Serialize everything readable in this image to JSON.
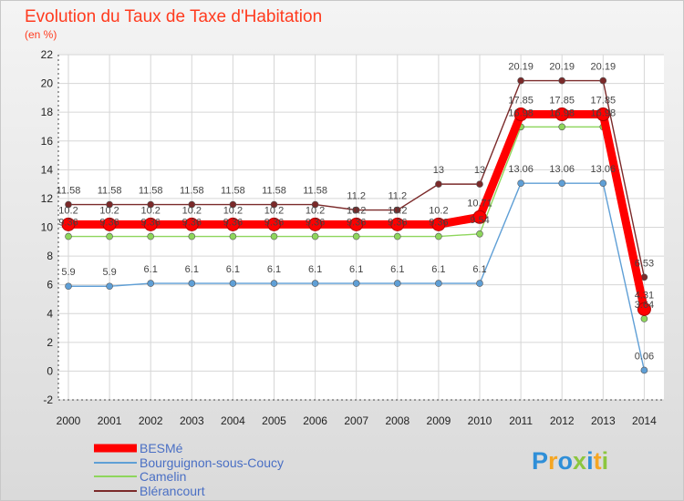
{
  "chart_data": {
    "type": "line",
    "title": "Evolution du Taux de Taxe d'Habitation",
    "subtitle": "(en %)",
    "categories": [
      "2000",
      "2001",
      "2002",
      "2003",
      "2004",
      "2005",
      "2006",
      "2007",
      "2008",
      "2009",
      "2010",
      "2011",
      "2012",
      "2013",
      "2014"
    ],
    "ylim": [
      -2,
      22
    ],
    "yticks": [
      -2,
      0,
      2,
      4,
      6,
      8,
      10,
      12,
      14,
      16,
      18,
      20,
      22
    ],
    "grid": true,
    "legend_position": "bottom-left",
    "series": [
      {
        "name": "BESMé",
        "color": "#ff0000",
        "values": [
          10.2,
          10.2,
          10.2,
          10.2,
          10.2,
          10.2,
          10.2,
          10.2,
          10.2,
          10.2,
          10.71,
          17.85,
          17.85,
          17.85,
          4.31
        ],
        "labels": [
          "10.2",
          "10.2",
          "10.2",
          "10.2",
          "10.2",
          "10.2",
          "10.2",
          "10.2",
          "10.2",
          "10.2",
          "10.71",
          "17.85",
          "17.85",
          "17.85",
          "4.31"
        ]
      },
      {
        "name": "Bourguignon-sous-Coucy",
        "color": "#5f9fd6",
        "values": [
          5.9,
          5.9,
          6.1,
          6.1,
          6.1,
          6.1,
          6.1,
          6.1,
          6.1,
          6.1,
          6.1,
          13.06,
          13.06,
          13.06,
          0.06
        ],
        "labels": [
          "5.9",
          "5.9",
          "6.1",
          "6.1",
          "6.1",
          "6.1",
          "6.1",
          "6.1",
          "6.1",
          "6.1",
          "6.1",
          "13.06",
          "13.06",
          "13.06",
          "0.06"
        ]
      },
      {
        "name": "Camelin",
        "color": "#8ed65c",
        "values": [
          9.36,
          9.36,
          9.36,
          9.36,
          9.36,
          9.36,
          9.36,
          9.36,
          9.36,
          9.36,
          9.54,
          16.98,
          16.98,
          16.98,
          3.64
        ],
        "labels": [
          "9.36",
          "9.36",
          "9.36",
          "9.36",
          "9.36",
          "9.36",
          "9.36",
          "9.36",
          "9.36",
          "9.36",
          "9.54",
          "16.98",
          "16.98",
          "16.98",
          "3.64"
        ]
      },
      {
        "name": "Blérancourt",
        "color": "#7b2a2a",
        "values": [
          11.58,
          11.58,
          11.58,
          11.58,
          11.58,
          11.58,
          11.58,
          11.2,
          11.2,
          13,
          13,
          20.19,
          20.19,
          20.19,
          6.53
        ],
        "labels": [
          "11.58",
          "11.58",
          "11.58",
          "11.58",
          "11.58",
          "11.58",
          "11.58",
          "11.2",
          "11.2",
          "13",
          "13",
          "20.19",
          "20.19",
          "20.19",
          "6.53"
        ]
      }
    ]
  },
  "branding": {
    "logo_letters": [
      "P",
      "r",
      "o",
      "x",
      "i",
      "t",
      "i"
    ],
    "logo_colors": [
      "#2f8fd8",
      "#f5a623",
      "#2f8fd8",
      "#8cc63f",
      "#2f8fd8",
      "#f5a623",
      "#8cc63f"
    ]
  }
}
